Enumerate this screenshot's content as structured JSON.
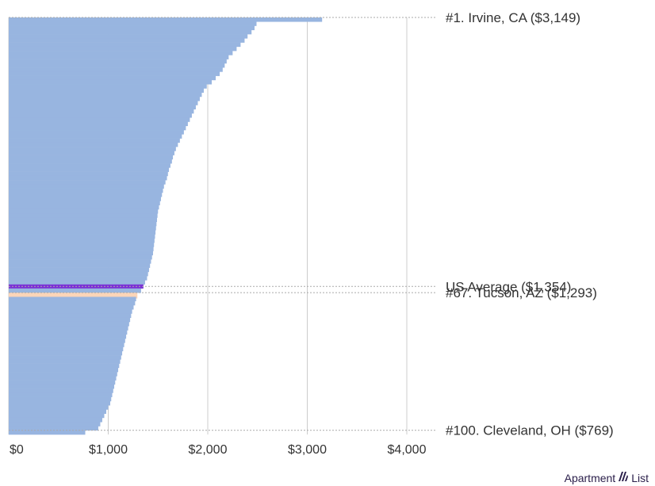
{
  "chart_data": {
    "type": "bar",
    "orientation": "horizontal",
    "title": "",
    "xlabel": "",
    "ylabel": "",
    "xlim": [
      0,
      4000
    ],
    "x_ticks": [
      {
        "value": 0,
        "label": "$0"
      },
      {
        "value": 1000,
        "label": "$1,000"
      },
      {
        "value": 2000,
        "label": "$2,000"
      },
      {
        "value": 3000,
        "label": "$3,000"
      },
      {
        "value": 4000,
        "label": "$4,000"
      }
    ],
    "grid": "vertical",
    "count": 100,
    "values": [
      3149,
      2490,
      2470,
      2440,
      2400,
      2370,
      2330,
      2290,
      2250,
      2210,
      2190,
      2170,
      2150,
      2120,
      2080,
      2040,
      1990,
      1960,
      1940,
      1920,
      1900,
      1880,
      1860,
      1840,
      1820,
      1800,
      1780,
      1760,
      1740,
      1720,
      1700,
      1680,
      1665,
      1650,
      1640,
      1625,
      1610,
      1600,
      1590,
      1575,
      1560,
      1550,
      1540,
      1530,
      1520,
      1510,
      1500,
      1495,
      1490,
      1485,
      1480,
      1475,
      1470,
      1465,
      1460,
      1455,
      1450,
      1440,
      1430,
      1420,
      1410,
      1400,
      1390,
      1370,
      1350,
      1330,
      1293,
      1280,
      1270,
      1255,
      1240,
      1230,
      1220,
      1210,
      1200,
      1190,
      1180,
      1170,
      1160,
      1150,
      1140,
      1130,
      1120,
      1110,
      1100,
      1090,
      1080,
      1070,
      1060,
      1050,
      1040,
      1030,
      1020,
      1000,
      980,
      960,
      940,
      920,
      900,
      769
    ],
    "reference_lines": [
      {
        "value": 1354,
        "color": "#7b2fd6",
        "position_rank": 65.5
      }
    ],
    "highlight": {
      "rank": 67,
      "color": "#fbd5b8"
    },
    "bar_color": "#98b5e0",
    "annotations": [
      {
        "label": "#1. Irvine, CA ($3,149)",
        "rank": 1
      },
      {
        "label": "US Average ($1,354)",
        "rank": 65.5
      },
      {
        "label": "#67. Tucson, AZ ($1,293)",
        "rank": 67
      },
      {
        "label": "#100. Cleveland, OH ($769)",
        "rank": 100
      }
    ]
  },
  "logo": {
    "left": "Apartment",
    "right": "List",
    "icon": "apartment-list-icon"
  }
}
